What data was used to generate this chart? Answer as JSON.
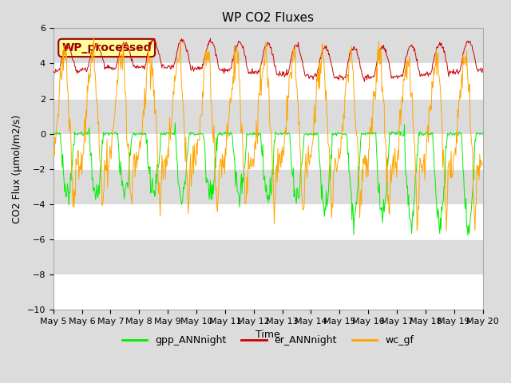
{
  "title": "WP CO2 Fluxes",
  "xlabel": "Time",
  "ylabel": "CO2 Flux (μmol/m2/s)",
  "ylim": [
    -10,
    6
  ],
  "yticks": [
    -10,
    -8,
    -6,
    -4,
    -2,
    0,
    2,
    4,
    6
  ],
  "xlim": [
    5,
    20
  ],
  "xtick_days": [
    5,
    6,
    7,
    8,
    9,
    10,
    11,
    12,
    13,
    14,
    15,
    16,
    17,
    18,
    19,
    20
  ],
  "n_days": 15,
  "points_per_day": 48,
  "gpp_color": "#00EE00",
  "er_color": "#CC0000",
  "wc_color": "#FFA500",
  "legend_labels": [
    "gpp_ANNnight",
    "er_ANNnight",
    "wc_gf"
  ],
  "annotation_text": "WP_processed",
  "annotation_color": "#990000",
  "annotation_bg": "#FFFF99",
  "background_color": "#DCDCDC",
  "grid_color": "white",
  "linewidth": 0.7,
  "title_fontsize": 11,
  "label_fontsize": 9,
  "tick_fontsize": 8,
  "legend_fontsize": 9
}
